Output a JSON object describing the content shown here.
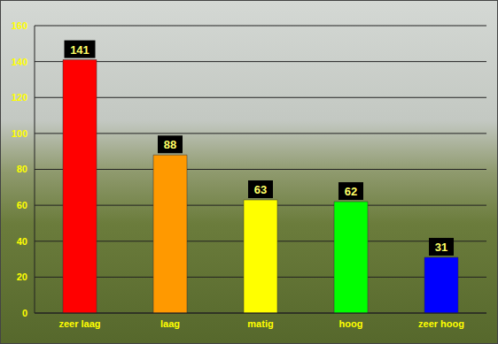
{
  "chart_data": {
    "type": "bar",
    "categories": [
      "zeer laag",
      "laag",
      "matig",
      "hoog",
      "zeer hoog"
    ],
    "values": [
      141,
      88,
      63,
      62,
      31
    ],
    "colors": [
      "#ff0000",
      "#ff9900",
      "#ffff00",
      "#00ff00",
      "#0000ff"
    ],
    "ylim": [
      0,
      160
    ],
    "yticks": [
      0,
      20,
      40,
      60,
      80,
      100,
      120,
      140,
      160
    ],
    "grid": true,
    "data_labels": true
  }
}
